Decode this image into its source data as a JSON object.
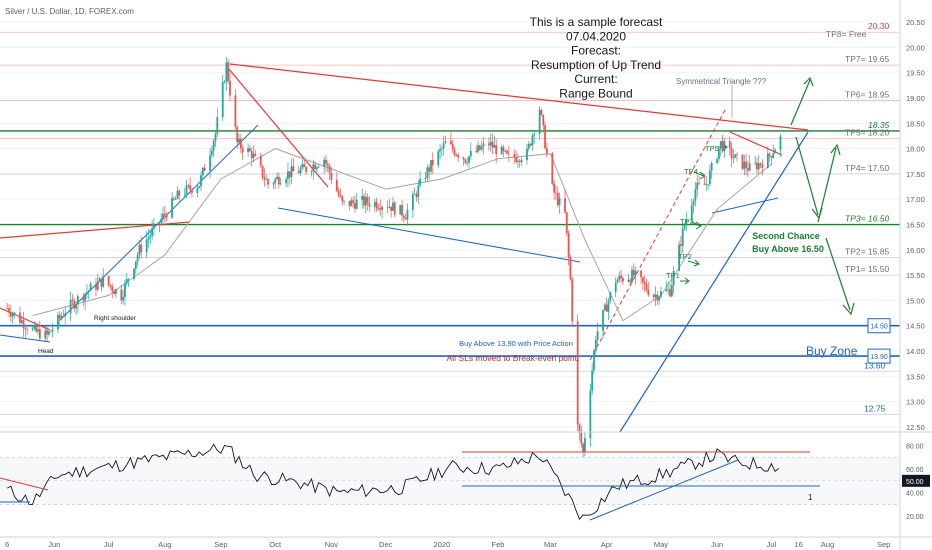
{
  "symbol_header": "Silver / U.S. Dollar, 1D, FOREX.com",
  "forecast_text": [
    "This is a sample forecast",
    "07.04.2020",
    "Forecast:",
    "Resumption of Up Trend",
    "Current:",
    "Range Bound"
  ],
  "colors": {
    "candle_up": "#26a69a",
    "candle_down": "#ef5350",
    "red_line": "#e53935",
    "blue_line": "#1e63c9",
    "green_line": "#1a7f2e",
    "grey_line": "#9aa3b5",
    "ma_line": "#a5a5a5",
    "rsi_line": "#131722",
    "tp_text": "#6a7080"
  },
  "chart_data": {
    "type": "candlestick",
    "title": "Silver / U.S. Dollar, 1D, FOREX.com",
    "x_ticks": [
      "6",
      "Jun",
      "Jul",
      "Aug",
      "Sep",
      "Oct",
      "Nov",
      "Dec",
      "2020",
      "Feb",
      "Mar",
      "Apr",
      "May",
      "Jun",
      "Jul",
      "16",
      "Aug",
      "Sep"
    ],
    "y_ticks": [
      "20.50",
      "20.00",
      "19.50",
      "19.00",
      "18.50",
      "18.00",
      "17.50",
      "17.00",
      "16.50",
      "16.00",
      "15.50",
      "15.00",
      "14.50",
      "14.00",
      "13.50",
      "13.00",
      "12.50"
    ],
    "ylim": [
      12.4,
      20.7
    ],
    "price_path": [
      [
        "2019-05-06",
        14.85
      ],
      [
        "2019-05-20",
        14.4
      ],
      [
        "2019-05-28",
        14.3
      ],
      [
        "2019-06-07",
        14.8
      ],
      [
        "2019-06-18",
        15.15
      ],
      [
        "2019-06-28",
        15.4
      ],
      [
        "2019-07-08",
        15.1
      ],
      [
        "2019-07-18",
        16.0
      ],
      [
        "2019-07-29",
        16.55
      ],
      [
        "2019-08-09",
        17.1
      ],
      [
        "2019-08-20",
        17.3
      ],
      [
        "2019-08-29",
        18.3
      ],
      [
        "2019-09-04",
        19.65
      ],
      [
        "2019-09-10",
        18.1
      ],
      [
        "2019-09-18",
        17.9
      ],
      [
        "2019-09-27",
        17.3
      ],
      [
        "2019-10-07",
        17.5
      ],
      [
        "2019-10-18",
        17.6
      ],
      [
        "2019-10-28",
        17.8
      ],
      [
        "2019-11-07",
        16.9
      ],
      [
        "2019-11-18",
        16.95
      ],
      [
        "2019-12-02",
        16.9
      ],
      [
        "2019-12-12",
        16.7
      ],
      [
        "2019-12-23",
        17.5
      ],
      [
        "2020-01-03",
        18.1
      ],
      [
        "2020-01-14",
        17.8
      ],
      [
        "2020-01-27",
        18.1
      ],
      [
        "2020-02-07",
        17.8
      ],
      [
        "2020-02-17",
        17.9
      ],
      [
        "2020-02-24",
        18.8
      ],
      [
        "2020-03-02",
        17.2
      ],
      [
        "2020-03-09",
        16.7
      ],
      [
        "2020-03-12",
        15.4
      ],
      [
        "2020-03-16",
        12.5
      ],
      [
        "2020-03-19",
        12.0
      ],
      [
        "2020-03-26",
        14.3
      ],
      [
        "2020-04-06",
        15.4
      ],
      [
        "2020-04-16",
        15.5
      ],
      [
        "2020-04-27",
        15.1
      ],
      [
        "2020-05-06",
        15.2
      ],
      [
        "2020-05-14",
        16.5
      ],
      [
        "2020-05-20",
        17.2
      ],
      [
        "2020-05-26",
        17.3
      ],
      [
        "2020-06-03",
        18.1
      ],
      [
        "2020-06-11",
        17.8
      ],
      [
        "2020-06-19",
        17.6
      ],
      [
        "2020-06-29",
        17.8
      ],
      [
        "2020-07-06",
        18.2
      ]
    ],
    "moving_average": [
      [
        "2019-05-20",
        14.7
      ],
      [
        "2019-07-01",
        15.1
      ],
      [
        "2019-08-01",
        15.9
      ],
      [
        "2019-09-01",
        17.4
      ],
      [
        "2019-10-01",
        18.0
      ],
      [
        "2019-11-01",
        17.6
      ],
      [
        "2019-12-01",
        17.2
      ],
      [
        "2020-01-01",
        17.4
      ],
      [
        "2020-02-01",
        17.8
      ],
      [
        "2020-03-01",
        17.9
      ],
      [
        "2020-03-20",
        16.2
      ],
      [
        "2020-04-10",
        14.6
      ],
      [
        "2020-05-01",
        15.1
      ],
      [
        "2020-06-01",
        16.8
      ],
      [
        "2020-07-01",
        17.7
      ]
    ],
    "horizontal_levels": [
      {
        "label": "TP8= Free",
        "value": 20.15
      },
      {
        "label": "TP7= 19.65",
        "value": 19.65
      },
      {
        "label": "TP6= 18.95",
        "value": 18.95
      },
      {
        "label": "18.35",
        "value": 18.35
      },
      {
        "label": "TP5= 18.20",
        "value": 18.2
      },
      {
        "label": "TP4= 17.50",
        "value": 17.5
      },
      {
        "label": "TP3= 16.50",
        "value": 16.5
      },
      {
        "label": "TP2= 15.85",
        "value": 15.85
      },
      {
        "label": "TP1= 15.50",
        "value": 15.5
      },
      {
        "label": "14.50",
        "value": 14.5
      },
      {
        "label": "13.90",
        "value": 13.9
      },
      {
        "label": "13.60",
        "value": 13.6
      },
      {
        "label": "12.75",
        "value": 12.75
      },
      {
        "label": "20.30",
        "value": 20.3
      }
    ],
    "annotations": [
      "Symmetrical Triangle ???",
      "Second Chance",
      "Buy Above 16.50",
      "Buy Above 13.90 with Price Action",
      "All SLs moved to Break-even point.",
      "Buy Zone",
      "Right shoulder",
      "Head",
      "TP1",
      "TP2",
      "TP3",
      "TP4",
      "TP5",
      "1"
    ],
    "rsi": {
      "y_ticks": [
        "80.00",
        "60.00",
        "50.00",
        "40.00",
        "20.00"
      ],
      "ylim": [
        10,
        88
      ],
      "current": "50.00",
      "path": [
        [
          "2019-05-06",
          42
        ],
        [
          "2019-05-20",
          32
        ],
        [
          "2019-06-03",
          55
        ],
        [
          "2019-07-01",
          62
        ],
        [
          "2019-08-01",
          70
        ],
        [
          "2019-09-04",
          78
        ],
        [
          "2019-09-20",
          55
        ],
        [
          "2019-10-15",
          48
        ],
        [
          "2019-11-05",
          40
        ],
        [
          "2019-12-10",
          44
        ],
        [
          "2020-01-06",
          62
        ],
        [
          "2020-02-01",
          60
        ],
        [
          "2020-02-24",
          72
        ],
        [
          "2020-03-05",
          50
        ],
        [
          "2020-03-19",
          18
        ],
        [
          "2020-04-06",
          45
        ],
        [
          "2020-05-01",
          55
        ],
        [
          "2020-06-01",
          72
        ],
        [
          "2020-06-11",
          66
        ],
        [
          "2020-07-06",
          62
        ]
      ]
    }
  }
}
